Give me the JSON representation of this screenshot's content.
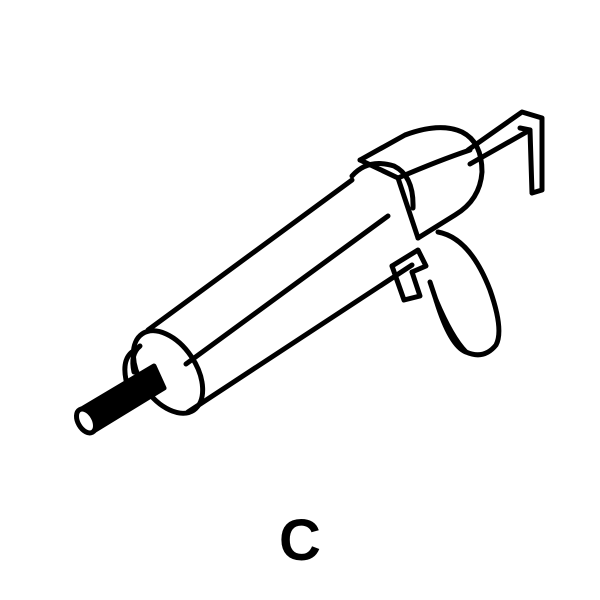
{
  "figure": {
    "caption": "C",
    "icon": "caulking-gun-icon",
    "colors": {
      "ink": "#000000",
      "paper": "#ffffff"
    }
  }
}
